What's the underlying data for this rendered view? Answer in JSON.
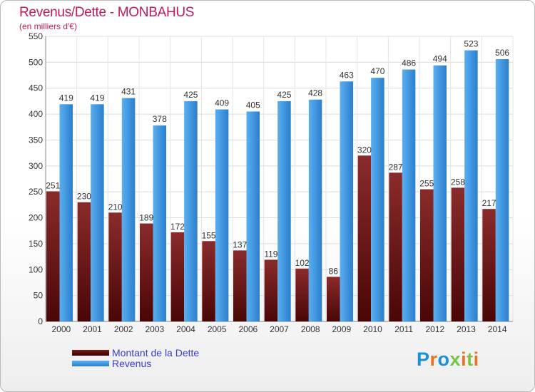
{
  "header": {
    "title": "Revenus/Dette - MONBAHUS",
    "subtitle": "(en milliers d'€)"
  },
  "legend": {
    "debt_label": "Montant de la Dette",
    "revenue_label": "Revenus"
  },
  "logo": {
    "text": "Proxiti",
    "letter_colors": [
      "#1e90d6",
      "#e8742a",
      "#1e90d6",
      "#7cc242",
      "#e8742a",
      "#7cc242",
      "#e8742a"
    ]
  },
  "colors": {
    "debt_top": "#8a2b2b",
    "debt_bottom": "#4a0606",
    "revenue_top": "#5aaef0",
    "revenue_bottom": "#2b7fcc",
    "title": "#c2185b",
    "legend_text": "#3a3ad0"
  },
  "chart_data": {
    "type": "bar",
    "title": "Revenus/Dette - MONBAHUS",
    "subtitle": "(en milliers d'€)",
    "categories": [
      "2000",
      "2001",
      "2002",
      "2003",
      "2004",
      "2005",
      "2006",
      "2007",
      "2008",
      "2009",
      "2010",
      "2011",
      "2012",
      "2013",
      "2014"
    ],
    "series": [
      {
        "name": "Montant de la Dette",
        "values": [
          251,
          230,
          210,
          189,
          172,
          155,
          137,
          119,
          102,
          86,
          320,
          287,
          255,
          258,
          217
        ]
      },
      {
        "name": "Revenus",
        "values": [
          419,
          419,
          431,
          378,
          425,
          409,
          405,
          425,
          428,
          463,
          470,
          486,
          494,
          523,
          506
        ]
      }
    ],
    "yticks": [
      0,
      50,
      100,
      150,
      200,
      250,
      300,
      350,
      400,
      450,
      500,
      550
    ],
    "ylim": [
      0,
      550
    ],
    "grid": true,
    "legend_position": "bottom-left"
  }
}
